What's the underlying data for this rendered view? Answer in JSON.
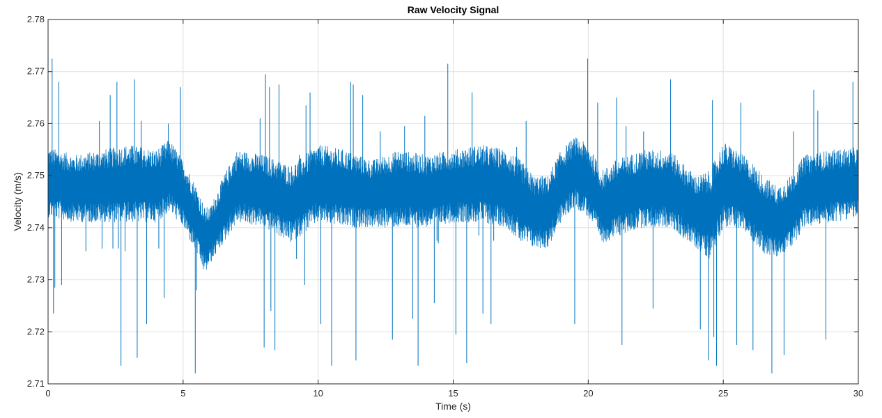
{
  "chart_data": {
    "type": "line",
    "title": "Raw Velocity Signal",
    "xlabel": "Time (s)",
    "ylabel": "Velocity (m/s)",
    "xlim": [
      0,
      30
    ],
    "ylim": [
      2.71,
      2.78
    ],
    "xticks": [
      0,
      5,
      10,
      15,
      20,
      25,
      30
    ],
    "yticks": [
      2.71,
      2.72,
      2.73,
      2.74,
      2.75,
      2.76,
      2.77,
      2.78
    ],
    "grid": true,
    "line_color": "#0072bd",
    "series": [
      {
        "envelope": {
          "t": [
            0,
            1,
            2,
            3,
            4,
            4.5,
            5,
            5.5,
            5.8,
            6,
            6.5,
            7,
            8,
            9,
            10,
            11,
            12,
            13,
            14,
            15,
            16,
            17,
            17.5,
            18,
            18.5,
            19,
            19.5,
            20,
            20.5,
            21,
            22,
            23,
            24,
            24.5,
            25,
            25.5,
            26,
            26.5,
            27,
            27.5,
            28,
            29,
            30
          ],
          "upper": [
            2.7555,
            2.754,
            2.755,
            2.756,
            2.755,
            2.757,
            2.753,
            2.748,
            2.744,
            2.744,
            2.75,
            2.755,
            2.754,
            2.752,
            2.756,
            2.755,
            2.753,
            2.755,
            2.754,
            2.755,
            2.756,
            2.755,
            2.753,
            2.75,
            2.75,
            2.755,
            2.7575,
            2.756,
            2.751,
            2.753,
            2.755,
            2.755,
            2.75,
            2.751,
            2.7565,
            2.755,
            2.753,
            2.75,
            2.748,
            2.75,
            2.754,
            2.755,
            2.7555
          ],
          "lower": [
            2.742,
            2.741,
            2.741,
            2.741,
            2.741,
            2.743,
            2.74,
            2.735,
            2.731,
            2.733,
            2.737,
            2.741,
            2.74,
            2.737,
            2.741,
            2.74,
            2.74,
            2.74,
            2.74,
            2.741,
            2.741,
            2.74,
            2.737,
            2.736,
            2.736,
            2.741,
            2.744,
            2.742,
            2.737,
            2.738,
            2.74,
            2.74,
            2.736,
            2.734,
            2.74,
            2.74,
            2.738,
            2.735,
            2.734,
            2.736,
            2.74,
            2.741,
            2.742
          ]
        },
        "spikes": [
          [
            0.15,
            2.7725
          ],
          [
            0.2,
            2.7235
          ],
          [
            0.25,
            2.7285
          ],
          [
            0.4,
            2.768
          ],
          [
            0.5,
            2.729
          ],
          [
            1.4,
            2.7355
          ],
          [
            1.9,
            2.7605
          ],
          [
            2.0,
            2.736
          ],
          [
            2.3,
            2.7655
          ],
          [
            2.4,
            2.736
          ],
          [
            2.55,
            2.768
          ],
          [
            2.6,
            2.736
          ],
          [
            2.7,
            2.7135
          ],
          [
            2.85,
            2.7355
          ],
          [
            3.2,
            2.7685
          ],
          [
            3.3,
            2.715
          ],
          [
            3.45,
            2.7605
          ],
          [
            3.65,
            2.7215
          ],
          [
            4.1,
            2.736
          ],
          [
            4.3,
            2.7265
          ],
          [
            4.45,
            2.76
          ],
          [
            4.9,
            2.767
          ],
          [
            5.45,
            2.712
          ],
          [
            5.5,
            2.728
          ],
          [
            6.25,
            2.7375
          ],
          [
            7.1,
            2.7525
          ],
          [
            7.85,
            2.761
          ],
          [
            8.0,
            2.717
          ],
          [
            8.05,
            2.7695
          ],
          [
            8.2,
            2.767
          ],
          [
            8.25,
            2.724
          ],
          [
            8.4,
            2.7165
          ],
          [
            8.55,
            2.7675
          ],
          [
            9.2,
            2.734
          ],
          [
            9.3,
            2.754
          ],
          [
            9.5,
            2.729
          ],
          [
            9.55,
            2.7635
          ],
          [
            9.7,
            2.766
          ],
          [
            9.8,
            2.7425
          ],
          [
            10.1,
            2.7215
          ],
          [
            10.5,
            2.7135
          ],
          [
            11.05,
            2.747
          ],
          [
            11.2,
            2.768
          ],
          [
            11.3,
            2.7675
          ],
          [
            11.4,
            2.7145
          ],
          [
            11.65,
            2.7655
          ],
          [
            12.3,
            2.7585
          ],
          [
            12.75,
            2.7185
          ],
          [
            13.2,
            2.7595
          ],
          [
            13.5,
            2.7225
          ],
          [
            13.7,
            2.7135
          ],
          [
            13.95,
            2.7615
          ],
          [
            14.3,
            2.7255
          ],
          [
            14.4,
            2.7375
          ],
          [
            14.45,
            2.737
          ],
          [
            14.8,
            2.7715
          ],
          [
            15.1,
            2.7195
          ],
          [
            15.5,
            2.714
          ],
          [
            15.7,
            2.766
          ],
          [
            15.95,
            2.7385
          ],
          [
            16.1,
            2.7235
          ],
          [
            16.4,
            2.7215
          ],
          [
            16.5,
            2.7375
          ],
          [
            17.35,
            2.7555
          ],
          [
            17.7,
            2.7605
          ],
          [
            18.1,
            2.7385
          ],
          [
            18.55,
            2.7405
          ],
          [
            19.25,
            2.747
          ],
          [
            19.5,
            2.7215
          ],
          [
            19.98,
            2.7725
          ],
          [
            20.35,
            2.764
          ],
          [
            21.05,
            2.765
          ],
          [
            21.25,
            2.7175
          ],
          [
            21.4,
            2.7595
          ],
          [
            22.05,
            2.7585
          ],
          [
            22.4,
            2.7245
          ],
          [
            23.05,
            2.7685
          ],
          [
            23.85,
            2.7425
          ],
          [
            24.15,
            2.7205
          ],
          [
            24.45,
            2.7145
          ],
          [
            24.6,
            2.7645
          ],
          [
            24.65,
            2.719
          ],
          [
            24.75,
            2.7135
          ],
          [
            25.5,
            2.7175
          ],
          [
            25.65,
            2.764
          ],
          [
            26.1,
            2.7165
          ],
          [
            26.8,
            2.712
          ],
          [
            27.25,
            2.7155
          ],
          [
            27.6,
            2.7585
          ],
          [
            28.0,
            2.7525
          ],
          [
            28.35,
            2.7665
          ],
          [
            28.5,
            2.7625
          ],
          [
            28.8,
            2.7185
          ],
          [
            29.8,
            2.768
          ]
        ]
      }
    ]
  }
}
